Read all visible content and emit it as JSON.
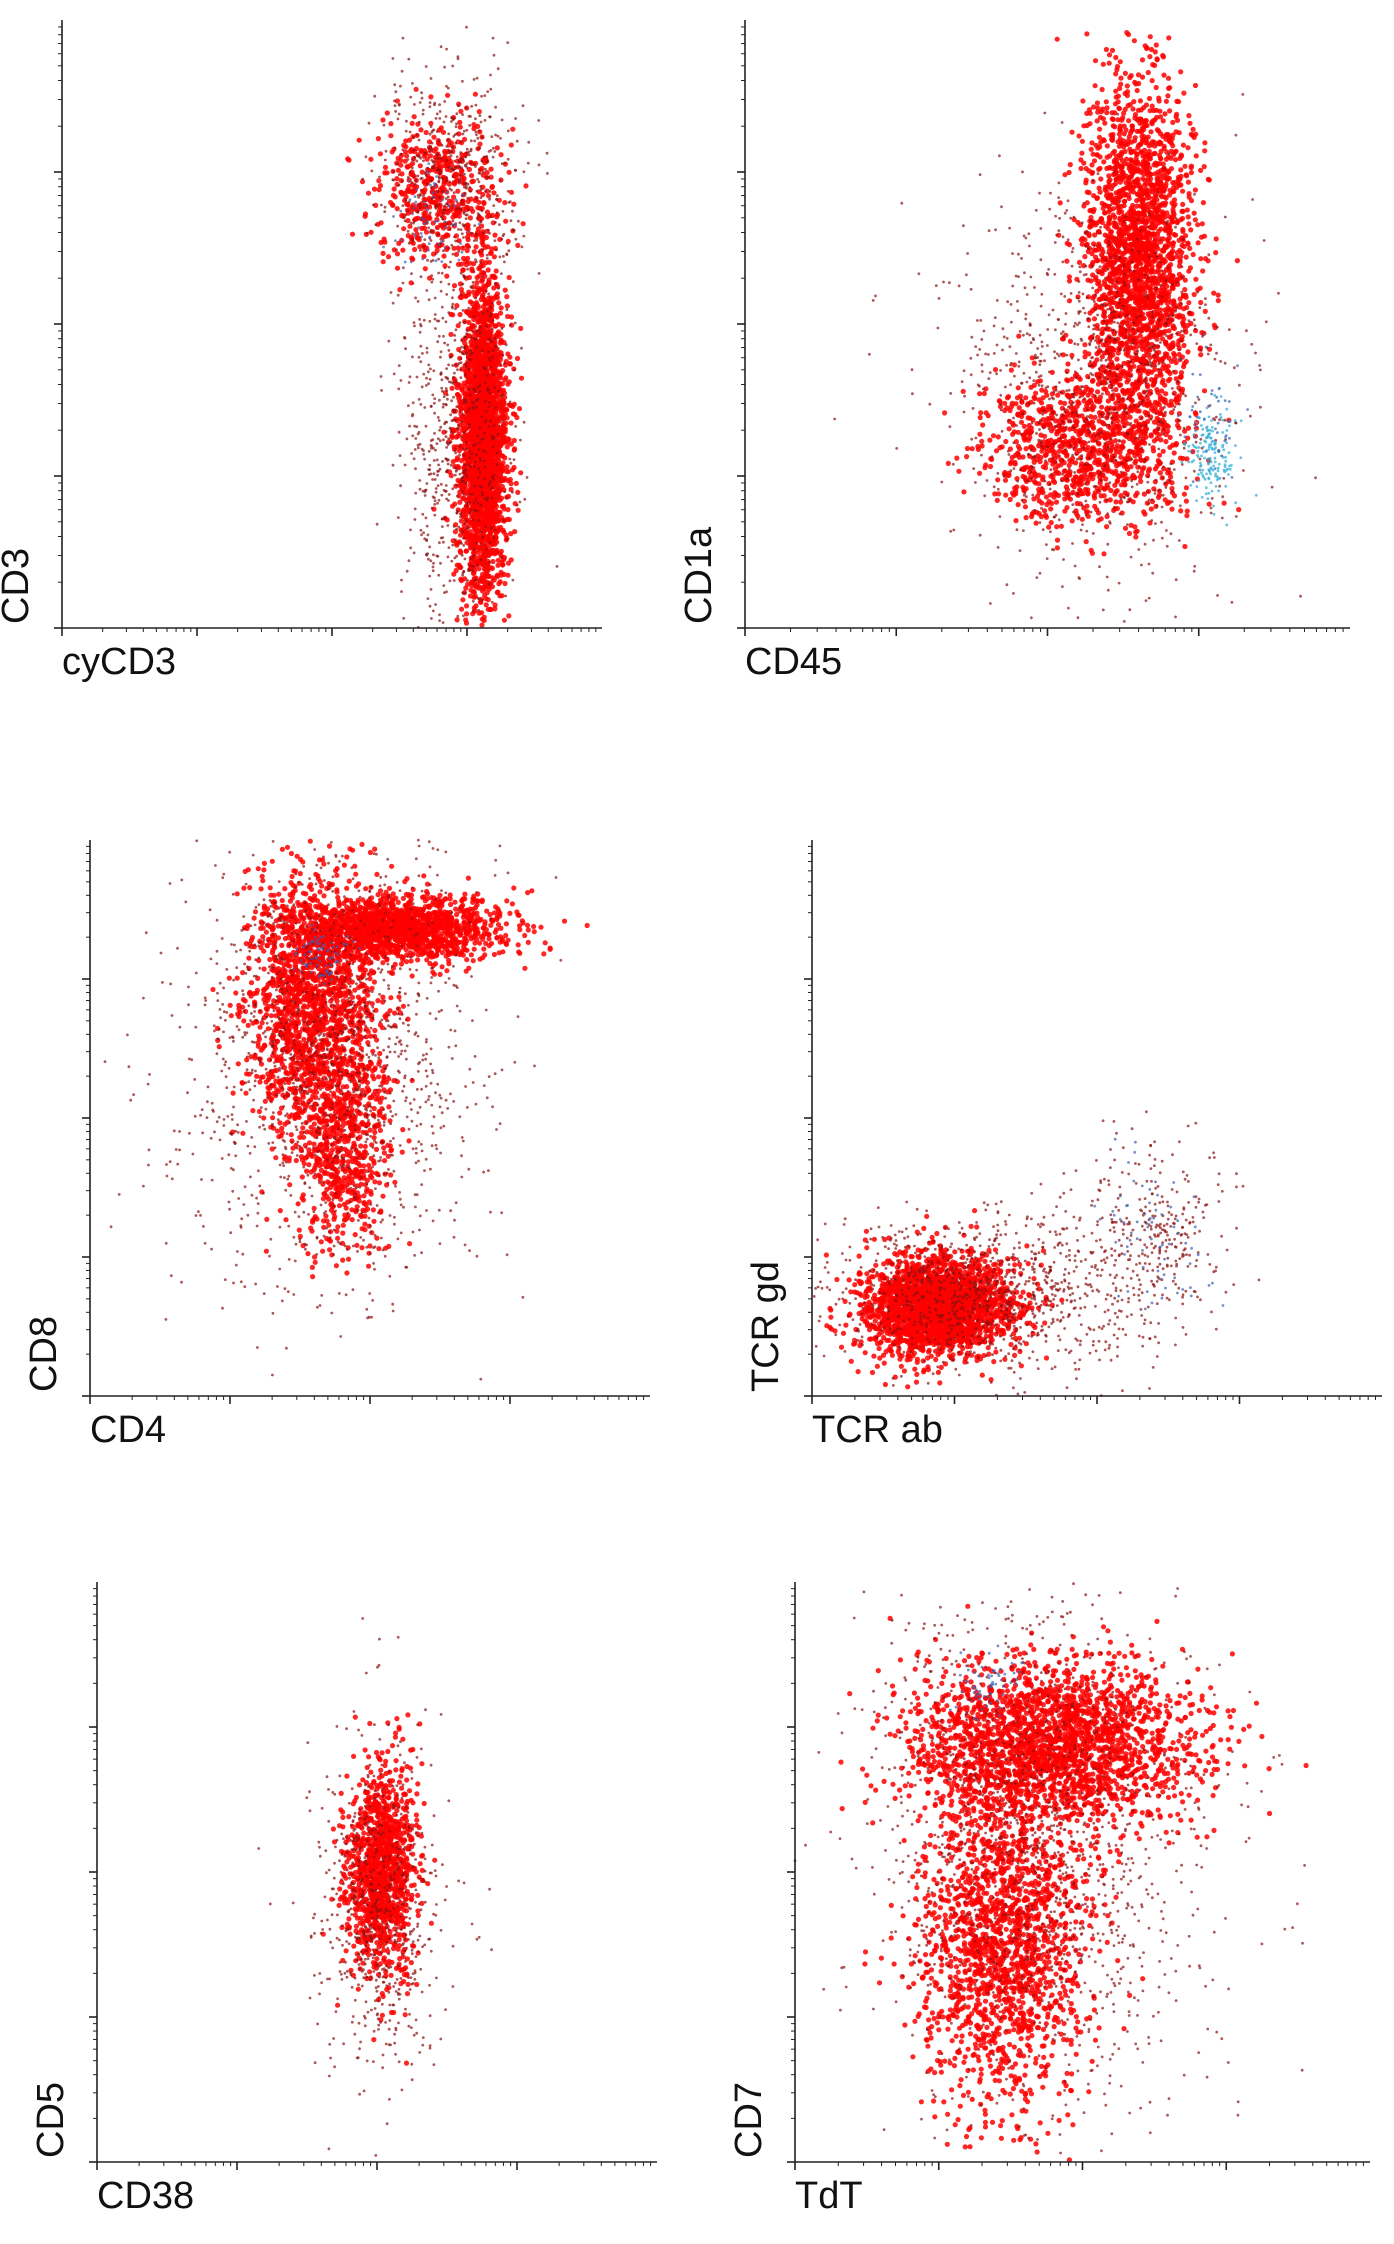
{
  "figure": {
    "colors": {
      "primary": "#ff0000",
      "dark": "#8b1010",
      "blue": "#3a5fb0",
      "cyan": "#29a9d6",
      "axis": "#222222"
    }
  },
  "chart_data": [
    {
      "type": "scatter",
      "xlabel": "cyCD3",
      "ylabel": "CD3",
      "clusters": [
        {
          "color": "primary",
          "cx": 0.78,
          "cy": 0.31,
          "sx": 0.022,
          "sy": 0.13,
          "n": 2600
        },
        {
          "color": "dark",
          "cx": 0.73,
          "cy": 0.33,
          "sx": 0.05,
          "sy": 0.17,
          "n": 700
        },
        {
          "color": "primary",
          "cx": 0.7,
          "cy": 0.72,
          "sx": 0.06,
          "sy": 0.06,
          "n": 500
        },
        {
          "color": "dark",
          "cx": 0.72,
          "cy": 0.75,
          "sx": 0.07,
          "sy": 0.08,
          "n": 450
        },
        {
          "color": "blue",
          "cx": 0.68,
          "cy": 0.66,
          "sx": 0.03,
          "sy": 0.04,
          "n": 60
        }
      ]
    },
    {
      "type": "scatter",
      "xlabel": "CD45",
      "ylabel": "CD1a",
      "clusters": [
        {
          "color": "primary",
          "cx": 0.65,
          "cy": 0.6,
          "sx": 0.045,
          "sy": 0.15,
          "n": 2300
        },
        {
          "color": "primary",
          "cx": 0.55,
          "cy": 0.3,
          "sx": 0.08,
          "sy": 0.06,
          "n": 900
        },
        {
          "color": "dark",
          "cx": 0.57,
          "cy": 0.4,
          "sx": 0.12,
          "sy": 0.16,
          "n": 900
        },
        {
          "color": "cyan",
          "cx": 0.77,
          "cy": 0.28,
          "sx": 0.02,
          "sy": 0.04,
          "n": 160
        },
        {
          "color": "blue",
          "cx": 0.76,
          "cy": 0.33,
          "sx": 0.025,
          "sy": 0.06,
          "n": 40
        }
      ]
    },
    {
      "type": "scatter",
      "xlabel": "CD4",
      "ylabel": "CD8",
      "clusters": [
        {
          "color": "primary",
          "cx": 0.55,
          "cy": 0.84,
          "sx": 0.09,
          "sy": 0.03,
          "n": 1500
        },
        {
          "color": "primary",
          "cx": 0.4,
          "cy": 0.7,
          "sx": 0.06,
          "sy": 0.12,
          "n": 1700
        },
        {
          "color": "primary",
          "cx": 0.45,
          "cy": 0.45,
          "sx": 0.04,
          "sy": 0.09,
          "n": 600
        },
        {
          "color": "dark",
          "cx": 0.42,
          "cy": 0.6,
          "sx": 0.13,
          "sy": 0.2,
          "n": 1300
        },
        {
          "color": "blue",
          "cx": 0.41,
          "cy": 0.79,
          "sx": 0.03,
          "sy": 0.025,
          "n": 70
        }
      ]
    },
    {
      "type": "scatter",
      "xlabel": "TCR ab",
      "ylabel": "TCR gd",
      "clusters": [
        {
          "color": "primary",
          "cx": 0.22,
          "cy": 0.16,
          "sx": 0.065,
          "sy": 0.045,
          "n": 2300
        },
        {
          "color": "dark",
          "cx": 0.3,
          "cy": 0.18,
          "sx": 0.13,
          "sy": 0.07,
          "n": 900
        },
        {
          "color": "dark",
          "cx": 0.58,
          "cy": 0.28,
          "sx": 0.08,
          "sy": 0.09,
          "n": 350
        },
        {
          "color": "blue",
          "cx": 0.6,
          "cy": 0.3,
          "sx": 0.05,
          "sy": 0.07,
          "n": 70
        }
      ]
    },
    {
      "type": "scatter",
      "xlabel": "CD38",
      "ylabel": "CD5",
      "clusters": [
        {
          "color": "primary",
          "cx": 0.51,
          "cy": 0.5,
          "sx": 0.03,
          "sy": 0.09,
          "n": 1200
        },
        {
          "color": "dark",
          "cx": 0.5,
          "cy": 0.43,
          "sx": 0.055,
          "sy": 0.14,
          "n": 600
        }
      ]
    },
    {
      "type": "scatter",
      "xlabel": "TdT",
      "ylabel": "CD7",
      "clusters": [
        {
          "color": "primary",
          "cx": 0.45,
          "cy": 0.72,
          "sx": 0.12,
          "sy": 0.07,
          "n": 2300
        },
        {
          "color": "primary",
          "cx": 0.36,
          "cy": 0.38,
          "sx": 0.07,
          "sy": 0.14,
          "n": 1700
        },
        {
          "color": "dark",
          "cx": 0.42,
          "cy": 0.55,
          "sx": 0.15,
          "sy": 0.24,
          "n": 1400
        },
        {
          "color": "blue",
          "cx": 0.33,
          "cy": 0.82,
          "sx": 0.03,
          "sy": 0.03,
          "n": 60
        }
      ]
    }
  ]
}
